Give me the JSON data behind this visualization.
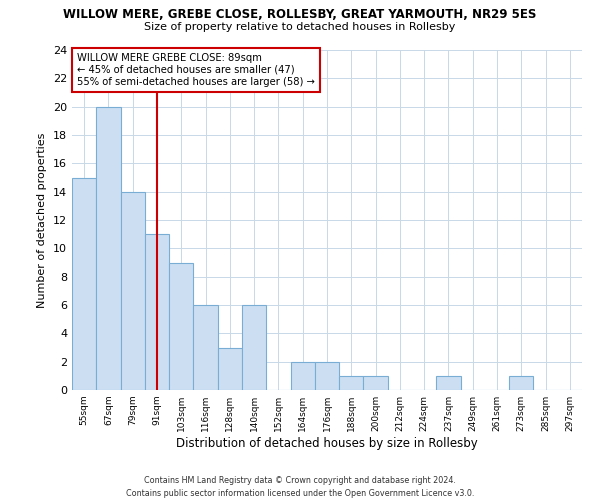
{
  "title": "WILLOW MERE, GREBE CLOSE, ROLLESBY, GREAT YARMOUTH, NR29 5ES",
  "subtitle": "Size of property relative to detached houses in Rollesby",
  "xlabel": "Distribution of detached houses by size in Rollesby",
  "ylabel": "Number of detached properties",
  "bin_labels": [
    "55sqm",
    "67sqm",
    "79sqm",
    "91sqm",
    "103sqm",
    "116sqm",
    "128sqm",
    "140sqm",
    "152sqm",
    "164sqm",
    "176sqm",
    "188sqm",
    "200sqm",
    "212sqm",
    "224sqm",
    "237sqm",
    "249sqm",
    "261sqm",
    "273sqm",
    "285sqm",
    "297sqm"
  ],
  "bar_heights": [
    15,
    20,
    14,
    11,
    9,
    6,
    3,
    6,
    0,
    2,
    2,
    1,
    1,
    0,
    0,
    1,
    0,
    0,
    1,
    0,
    0
  ],
  "bar_color": "#ccdff2",
  "bar_edge_color": "#7aadd4",
  "grid_color": "#c8d8e8",
  "property_line_x": 3,
  "annotation_title": "WILLOW MERE GREBE CLOSE: 89sqm",
  "annotation_line1": "← 45% of detached houses are smaller (47)",
  "annotation_line2": "55% of semi-detached houses are larger (58) →",
  "annotation_box_color": "#ffffff",
  "annotation_box_edge": "#cc0000",
  "red_line_color": "#cc0000",
  "ylim": [
    0,
    24
  ],
  "yticks": [
    0,
    2,
    4,
    6,
    8,
    10,
    12,
    14,
    16,
    18,
    20,
    22,
    24
  ],
  "footer1": "Contains HM Land Registry data © Crown copyright and database right 2024.",
  "footer2": "Contains public sector information licensed under the Open Government Licence v3.0.",
  "num_bins": 21
}
